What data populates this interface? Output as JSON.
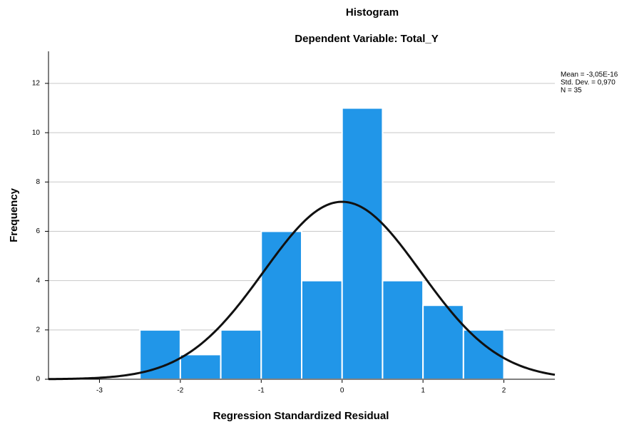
{
  "chart_data": {
    "type": "histogram",
    "title": "Histogram",
    "subtitle": "Dependent Variable: Total_Y",
    "x_label": "Regression Standardized Residual",
    "y_label": "Frequency",
    "bins": [
      -2.5,
      -2,
      -1.5,
      -1,
      -0.5,
      0,
      0.5,
      1,
      1.5,
      2
    ],
    "values": [
      2,
      1,
      2,
      6,
      4,
      11,
      4,
      3,
      2
    ],
    "color": "#2196e8",
    "xlim": [
      -3.63,
      2.63
    ],
    "xticks": [
      -3,
      -2,
      -1,
      0,
      1,
      2
    ],
    "ylim": [
      0,
      13.3
    ],
    "yticks": [
      0,
      2,
      4,
      6,
      8,
      10,
      12
    ],
    "grid": true,
    "normal_curve": {
      "color": "#111111",
      "mean": {
        "value": -3.05e-16,
        "label": "Mean = -3,05E-16"
      },
      "sd": {
        "value": 0.97,
        "label": "Std. Dev. = 0,970"
      },
      "n": {
        "value": 35,
        "label": "N = 35"
      }
    }
  }
}
